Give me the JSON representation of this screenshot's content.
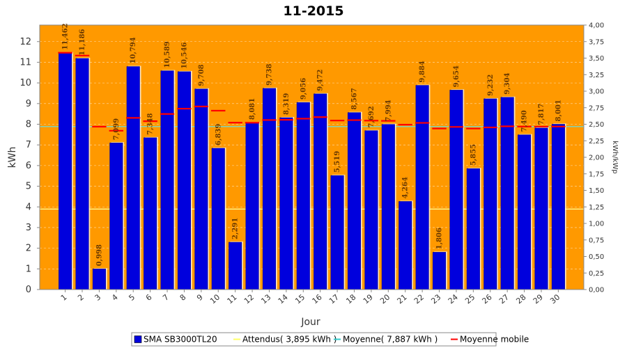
{
  "chart_data": {
    "type": "bar",
    "title": "11-2015",
    "xlabel": "Jour",
    "ylabel": "kWh",
    "y2label": "kWh/kWp",
    "ylim": [
      0,
      12.8
    ],
    "y2lim": [
      0,
      4.0
    ],
    "yticks": [
      "0",
      "1",
      "2",
      "3",
      "4",
      "5",
      "6",
      "7",
      "8",
      "9",
      "10",
      "11",
      "12"
    ],
    "y2ticks": [
      "0,00",
      "0,25",
      "0,50",
      "0,75",
      "1,00",
      "1,25",
      "1,50",
      "1,75",
      "2,00",
      "2,25",
      "2,50",
      "2,75",
      "3,00",
      "3,25",
      "3,50",
      "3,75",
      "4,00"
    ],
    "categories": [
      "1",
      "2",
      "3",
      "4",
      "5",
      "6",
      "7",
      "8",
      "9",
      "10",
      "11",
      "12",
      "13",
      "14",
      "15",
      "16",
      "17",
      "18",
      "19",
      "20",
      "21",
      "22",
      "23",
      "24",
      "25",
      "26",
      "27",
      "28",
      "29",
      "30"
    ],
    "series": [
      {
        "name": "SMA SB3000TL20",
        "values": [
          11.462,
          11.186,
          0.998,
          7.099,
          10.794,
          7.348,
          10.589,
          10.546,
          9.708,
          6.839,
          2.291,
          8.081,
          9.738,
          8.319,
          9.056,
          9.472,
          5.519,
          8.567,
          7.692,
          7.994,
          4.264,
          9.884,
          1.806,
          9.654,
          5.855,
          9.232,
          9.304,
          7.49,
          7.817,
          8.001
        ],
        "labels": [
          "11,462",
          "11,186",
          "0,998",
          "7,099",
          "10,794",
          "7,348",
          "10,589",
          "10,546",
          "9,708",
          "6,839",
          "2,291",
          "8,081",
          "9,738",
          "8,319",
          "9,056",
          "9,472",
          "5,519",
          "8,567",
          "7,692",
          "7,994",
          "4,264",
          "9,884",
          "1,806",
          "9,654",
          "5,855",
          "9,232",
          "9,304",
          "7,490",
          "7,817",
          "8,001"
        ],
        "color": "#0000dd"
      },
      {
        "name": "Moyenne mobile",
        "values": [
          11.462,
          11.324,
          7.882,
          7.686,
          8.308,
          8.148,
          8.497,
          8.753,
          8.858,
          8.656,
          8.077,
          8.077,
          8.205,
          8.214,
          8.27,
          8.345,
          8.179,
          8.2,
          8.174,
          8.165,
          7.979,
          8.066,
          7.794,
          7.871,
          7.791,
          7.846,
          7.9,
          7.887,
          7.884,
          7.888
        ],
        "color": "#ff0000"
      }
    ],
    "reference_lines": [
      {
        "name": "Attendus( 3,895 kWh )",
        "value": 3.895,
        "color": "#ffff99"
      },
      {
        "name": "Moyenne( 7,887 kWh )",
        "value": 7.887,
        "color": "#66dddd"
      }
    ],
    "legend": {
      "position": "bottom",
      "items": [
        {
          "label": "SMA SB3000TL20",
          "color": "#0000dd",
          "icon": "square"
        },
        {
          "label": "Attendus( 3,895 kWh )",
          "color": "#ffff66",
          "icon": "line"
        },
        {
          "label": "Moyenne( 7,887 kWh )",
          "color": "#33cccc",
          "icon": "line"
        },
        {
          "label": "Moyenne mobile",
          "color": "#ff0000",
          "icon": "line"
        }
      ]
    },
    "plot_background": "#ff9900",
    "grid": true
  }
}
